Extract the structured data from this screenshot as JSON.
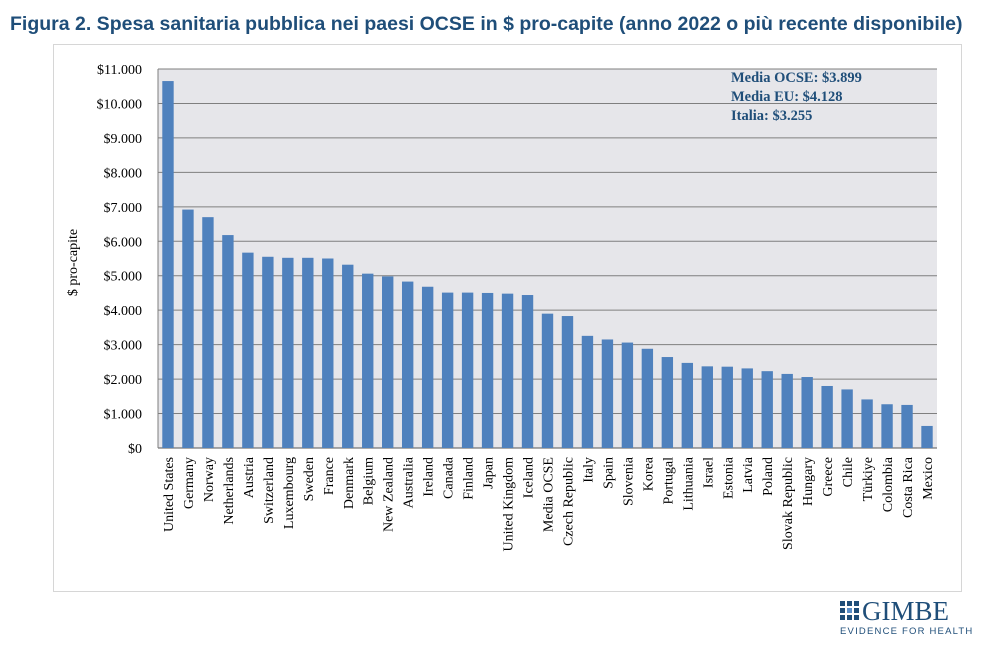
{
  "title": "Figura 2. Spesa sanitaria pubblica nei paesi OCSE in $ pro-capite (anno 2022 o più recente disponibile)",
  "annotations": [
    "Media OCSE: $3.899",
    "Media EU: $4.128",
    "Italia: $3.255"
  ],
  "logo": {
    "name": "GIMBE",
    "tagline": "EVIDENCE FOR HEALTH"
  },
  "colors": {
    "bar": "#4f81bd",
    "plot_bg": "#e6e6ea",
    "title": "#1f4e79",
    "annotation": "#1f4e79"
  },
  "chart_data": {
    "type": "bar",
    "title": "",
    "xlabel": "",
    "ylabel": "$ pro-capite",
    "ylim": [
      0,
      11000
    ],
    "yticks": [
      0,
      1000,
      2000,
      3000,
      4000,
      5000,
      6000,
      7000,
      8000,
      9000,
      10000,
      11000
    ],
    "ytick_labels": [
      "$0",
      "$1.000",
      "$2.000",
      "$3.000",
      "$4.000",
      "$5.000",
      "$6.000",
      "$7.000",
      "$8.000",
      "$9.000",
      "$10.000",
      "$11.000"
    ],
    "grid": true,
    "legend": false,
    "categories": [
      "United States",
      "Germany",
      "Norway",
      "Netherlands",
      "Austria",
      "Switzerland",
      "Luxembourg",
      "Sweden",
      "France",
      "Denmark",
      "Belgium",
      "New Zealand",
      "Australia",
      "Ireland",
      "Canada",
      "Finland",
      "Japan",
      "United Kingdom",
      "Iceland",
      "Media OCSE",
      "Czech Republic",
      "Italy",
      "Spain",
      "Slovenia",
      "Korea",
      "Portugal",
      "Lithuania",
      "Israel",
      "Estonia",
      "Latvia",
      "Poland",
      "Slovak Republic",
      "Hungary",
      "Greece",
      "Chile",
      "Türkiye",
      "Colombia",
      "Costa Rica",
      "Mexico"
    ],
    "values": [
      10650,
      6920,
      6700,
      6180,
      5670,
      5550,
      5520,
      5520,
      5500,
      5320,
      5060,
      4980,
      4830,
      4680,
      4510,
      4510,
      4500,
      4480,
      4440,
      3899,
      3830,
      3255,
      3150,
      3060,
      2880,
      2640,
      2470,
      2370,
      2360,
      2310,
      2230,
      2150,
      2060,
      1800,
      1700,
      1410,
      1270,
      1250,
      640
    ]
  }
}
